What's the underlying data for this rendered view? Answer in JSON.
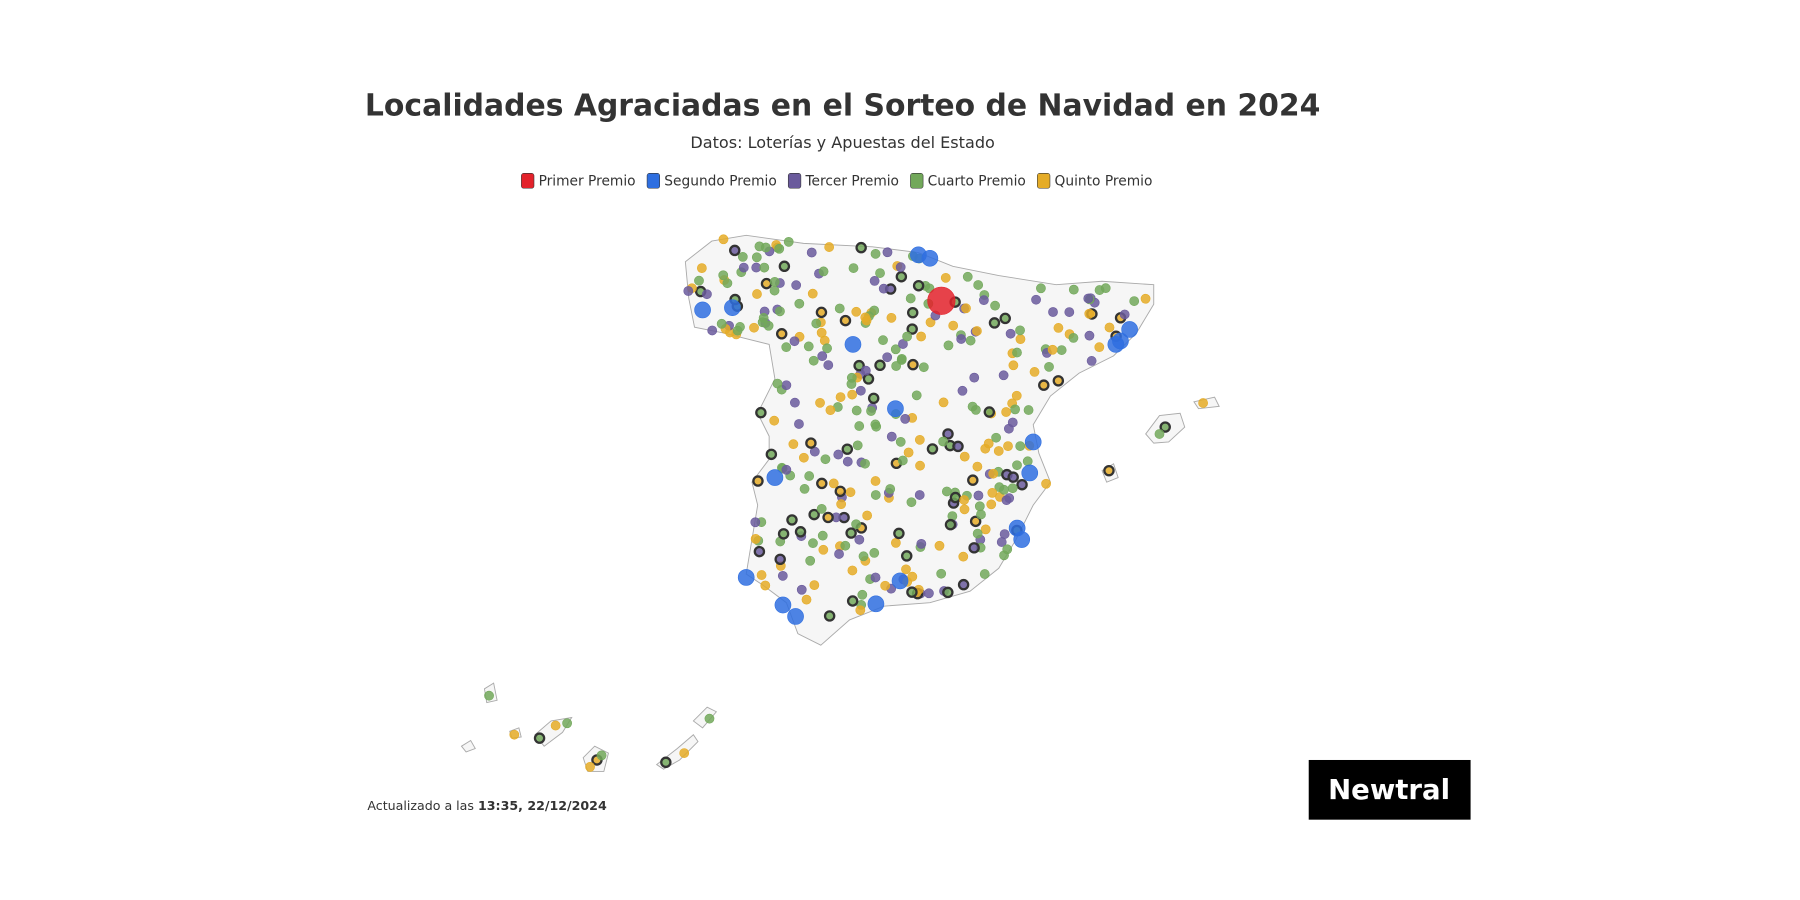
{
  "header": {
    "title": "Localidades Agraciadas en el Sorteo de Navidad en 2024",
    "subtitle": "Datos: Loterías y Apuestas del Estado"
  },
  "legend": [
    {
      "label": "Primer Premio",
      "color": "#e3222b"
    },
    {
      "label": "Segundo Premio",
      "color": "#2f6fe0"
    },
    {
      "label": "Tercer Premio",
      "color": "#6a5a9c"
    },
    {
      "label": "Cuarto Premio",
      "color": "#72a85a"
    },
    {
      "label": "Quinto Premio",
      "color": "#e5ac27"
    }
  ],
  "footer": {
    "prefix": "Actualizado a las",
    "timestamp": "13:35, 22/12/2024"
  },
  "logo": "Newtral"
}
